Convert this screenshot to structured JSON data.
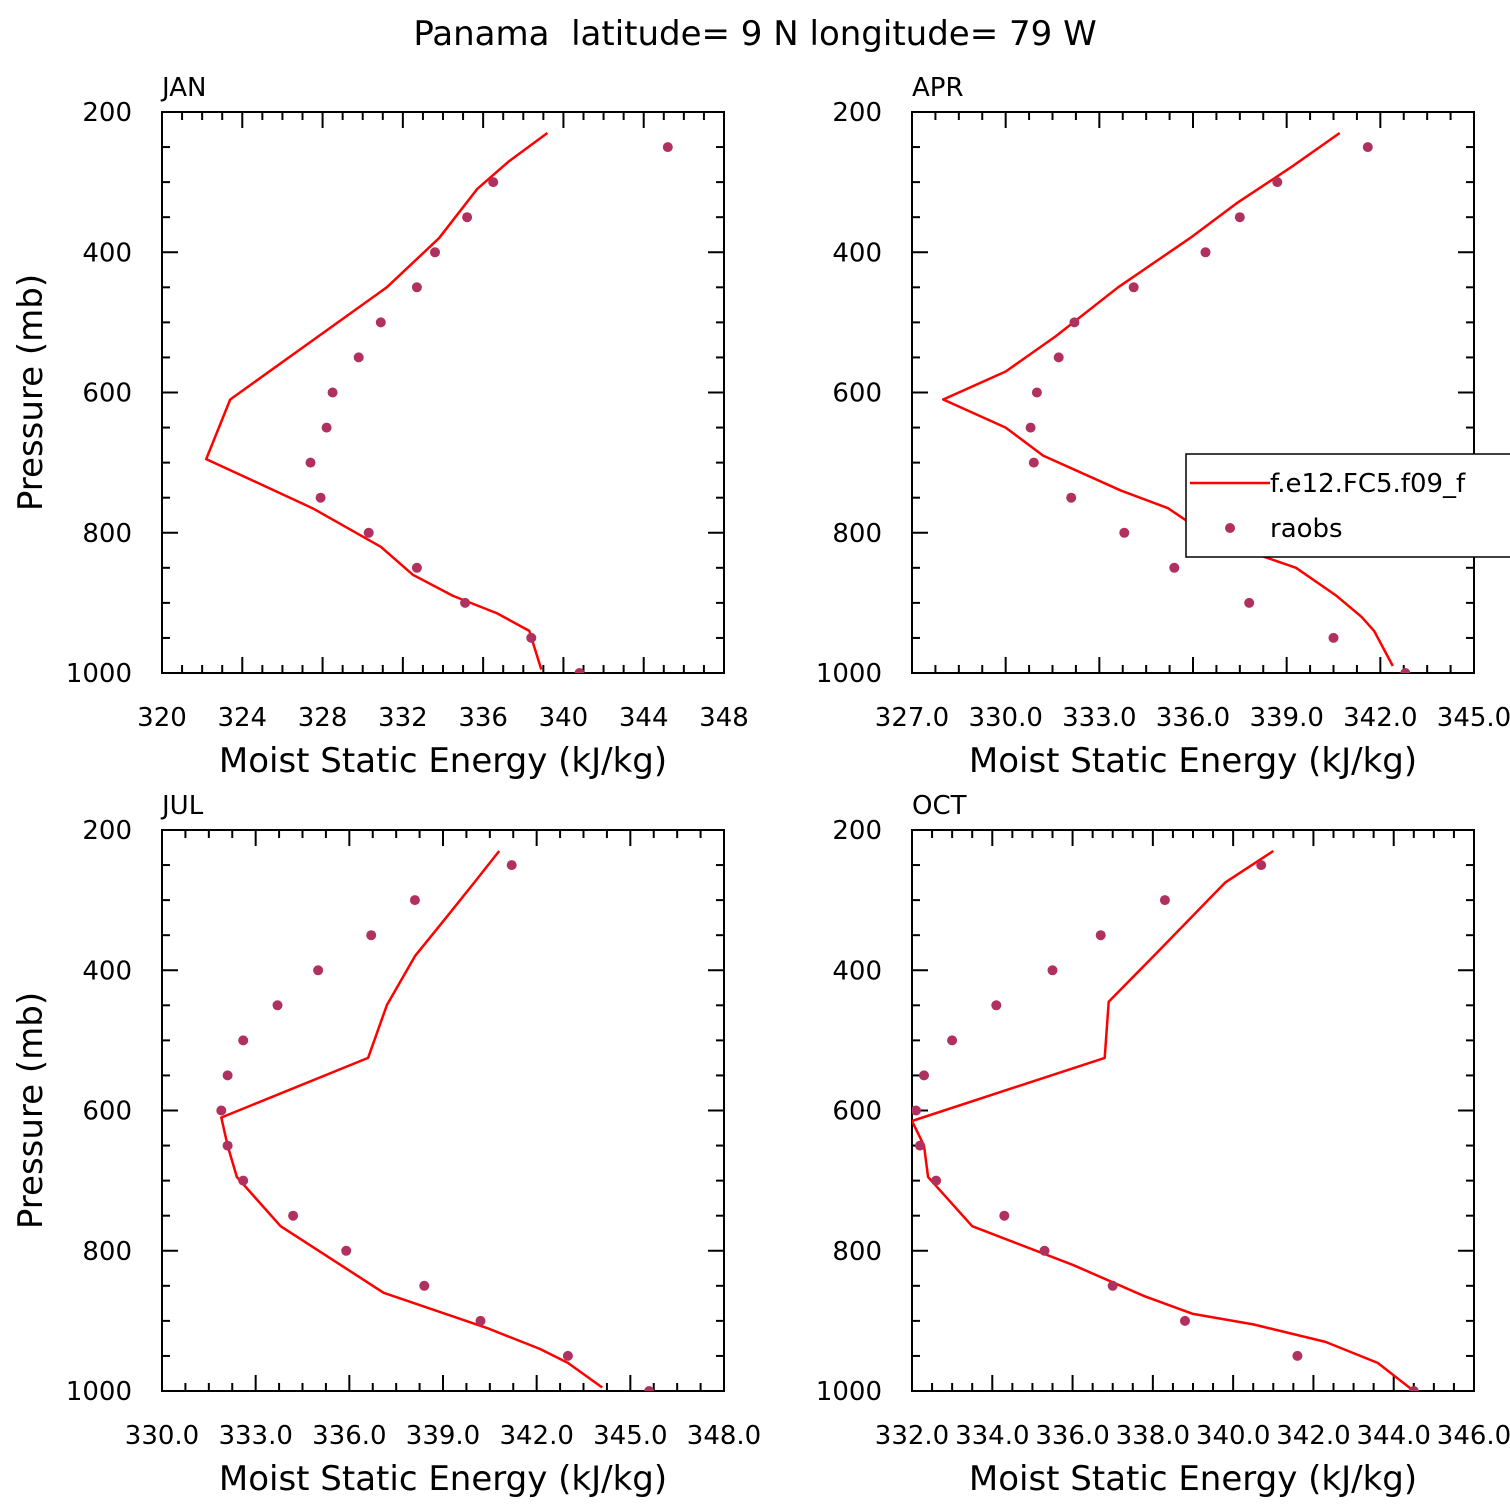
{
  "title": "Panama  latitude= 9 N longitude= 79 W",
  "legend": {
    "model_label": "f.e12.FC5.f09_f",
    "obs_label": "raobs",
    "model_color": "#ff0000",
    "obs_color": "#b03060"
  },
  "chart_data": [
    {
      "type": "line",
      "panel_label": "JAN",
      "xlabel": "Moist Static Energy (kJ/kg)",
      "ylabel": "Pressure (mb)",
      "xlim": [
        320,
        348
      ],
      "ylim": [
        1000,
        200
      ],
      "x_ticks": [
        "320",
        "324",
        "328",
        "332",
        "336",
        "340",
        "344",
        "348"
      ],
      "y_ticks": [
        "200",
        "400",
        "600",
        "800",
        "1000"
      ],
      "series": [
        {
          "name": "f.e12.FC5.f09_f",
          "style": "line",
          "x": [
            339.2,
            337.3,
            335.7,
            333.8,
            331.2,
            323.4,
            322.2,
            327.5,
            330.9,
            332.5,
            334.5,
            336.7,
            338.3,
            338.9
          ],
          "y": [
            230,
            270,
            310,
            380,
            450,
            610,
            695,
            765,
            820,
            860,
            890,
            915,
            940,
            995
          ]
        },
        {
          "name": "raobs",
          "style": "markers",
          "x": [
            345.2,
            336.5,
            335.2,
            333.6,
            332.7,
            330.9,
            329.8,
            328.5,
            328.2,
            327.4,
            327.9,
            330.3,
            332.7,
            335.1,
            338.4,
            340.8
          ],
          "y": [
            250,
            300,
            350,
            400,
            450,
            500,
            550,
            600,
            650,
            700,
            750,
            800,
            850,
            900,
            950,
            1000
          ]
        }
      ]
    },
    {
      "type": "line",
      "panel_label": "APR",
      "xlabel": "Moist Static Energy (kJ/kg)",
      "ylabel": "",
      "xlim": [
        327,
        345
      ],
      "ylim": [
        1000,
        200
      ],
      "x_ticks": [
        "327.0",
        "330.0",
        "333.0",
        "336.0",
        "339.0",
        "342.0",
        "345.0"
      ],
      "y_ticks": [
        "200",
        "400",
        "600",
        "800",
        "1000"
      ],
      "legend": "right",
      "series": [
        {
          "name": "f.e12.FC5.f09_f",
          "style": "line",
          "x": [
            340.7,
            339.1,
            337.4,
            335.9,
            333.6,
            331.6,
            330.0,
            328.0,
            330.0,
            331.2,
            333.7,
            335.2,
            336.7,
            339.3,
            340.6,
            341.4,
            341.8,
            342.4
          ],
          "y": [
            230,
            280,
            330,
            380,
            450,
            520,
            570,
            610,
            650,
            690,
            740,
            765,
            810,
            850,
            890,
            920,
            940,
            990
          ]
        },
        {
          "name": "raobs",
          "style": "markers",
          "x": [
            341.6,
            338.7,
            337.5,
            336.4,
            334.1,
            332.2,
            331.7,
            331.0,
            330.8,
            330.9,
            332.1,
            333.8,
            335.4,
            337.8,
            340.5,
            342.8
          ],
          "y": [
            250,
            300,
            350,
            400,
            450,
            500,
            550,
            600,
            650,
            700,
            750,
            800,
            850,
            900,
            950,
            1000
          ]
        }
      ]
    },
    {
      "type": "line",
      "panel_label": "JUL",
      "xlabel": "Moist Static Energy (kJ/kg)",
      "ylabel": "Pressure (mb)",
      "xlim": [
        330,
        348
      ],
      "ylim": [
        1000,
        200
      ],
      "x_ticks": [
        "330.0",
        "333.0",
        "336.0",
        "339.0",
        "342.0",
        "345.0",
        "348.0"
      ],
      "y_ticks": [
        "200",
        "400",
        "600",
        "800",
        "1000"
      ],
      "series": [
        {
          "name": "f.e12.FC5.f09_f",
          "style": "line",
          "x": [
            340.8,
            340.0,
            339.1,
            338.1,
            337.2,
            336.6,
            331.9,
            332.1,
            332.4,
            333.8,
            337.1,
            340.4,
            342.1,
            343.0,
            344.1
          ],
          "y": [
            230,
            275,
            325,
            380,
            450,
            525,
            610,
            650,
            695,
            765,
            860,
            910,
            940,
            960,
            995
          ]
        },
        {
          "name": "raobs",
          "style": "markers",
          "x": [
            341.2,
            338.1,
            336.7,
            335.0,
            333.7,
            332.6,
            332.1,
            331.9,
            332.1,
            332.6,
            334.2,
            335.9,
            338.4,
            340.2,
            343.0,
            345.6
          ],
          "y": [
            250,
            300,
            350,
            400,
            450,
            500,
            550,
            600,
            650,
            700,
            750,
            800,
            850,
            900,
            950,
            1000
          ]
        }
      ]
    },
    {
      "type": "line",
      "panel_label": "OCT",
      "xlabel": "Moist Static Energy (kJ/kg)",
      "ylabel": "",
      "xlim": [
        332,
        346
      ],
      "ylim": [
        1000,
        200
      ],
      "x_ticks": [
        "332.0",
        "334.0",
        "336.0",
        "338.0",
        "340.0",
        "342.0",
        "344.0",
        "346.0"
      ],
      "y_ticks": [
        "200",
        "400",
        "600",
        "800",
        "1000"
      ],
      "series": [
        {
          "name": "f.e12.FC5.f09_f",
          "style": "line",
          "x": [
            341.0,
            339.8,
            338.1,
            336.9,
            336.8,
            332.0,
            332.3,
            332.4,
            333.5,
            336.0,
            337.8,
            339.0,
            340.5,
            342.3,
            343.6,
            344.5
          ],
          "y": [
            230,
            275,
            375,
            445,
            525,
            615,
            650,
            695,
            765,
            820,
            865,
            890,
            905,
            930,
            960,
            1000
          ]
        },
        {
          "name": "raobs",
          "style": "markers",
          "x": [
            340.7,
            338.3,
            336.7,
            335.5,
            334.1,
            333.0,
            332.3,
            332.1,
            332.2,
            332.6,
            334.3,
            335.3,
            337.0,
            338.8,
            341.6,
            344.5
          ],
          "y": [
            250,
            300,
            350,
            400,
            450,
            500,
            550,
            600,
            650,
            700,
            750,
            800,
            850,
            900,
            950,
            1000
          ]
        }
      ]
    }
  ]
}
